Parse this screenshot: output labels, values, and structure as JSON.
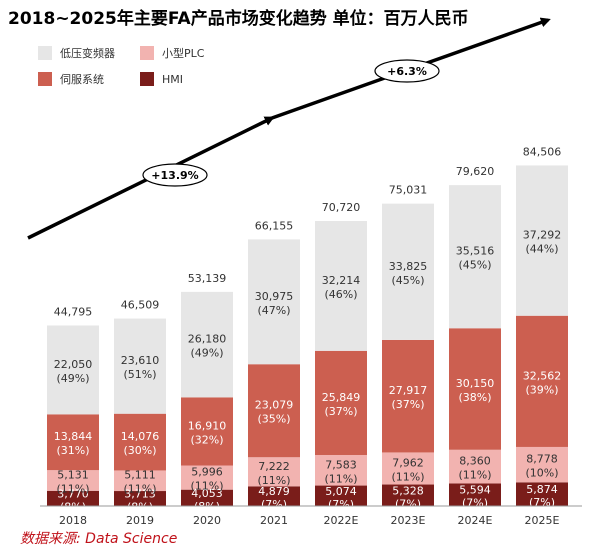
{
  "title": "2018~2025年主要FA产品市场变化趋势 单位：百万人民币",
  "source": "数据来源: Data Science",
  "colors": {
    "低压变频器": "#e6e6e6",
    "伺服系统": "#cc5f50",
    "小型PLC": "#f2b3b0",
    "HMI": "#7a1d1a"
  },
  "chart_data": {
    "type": "bar",
    "stacked": true,
    "categories": [
      "2018",
      "2019",
      "2020",
      "2021",
      "2022E",
      "2023E",
      "2024E",
      "2025E"
    ],
    "series": [
      {
        "name": "HMI",
        "values": [
          3770,
          3713,
          4053,
          4879,
          5074,
          5328,
          5594,
          5874
        ],
        "labels": [
          "3,770",
          "3,713",
          "4,053",
          "4,879",
          "5,074",
          "5,328",
          "5,594",
          "5,874"
        ],
        "pct": [
          "(8%)",
          "(8%)",
          "(8%)",
          "(7%)",
          "(7%)",
          "(7%)",
          "(7%)",
          "(7%)"
        ]
      },
      {
        "name": "小型PLC",
        "values": [
          5131,
          5111,
          5996,
          7222,
          7583,
          7962,
          8360,
          8778
        ],
        "labels": [
          "5,131",
          "5,111",
          "5,996",
          "7,222",
          "7,583",
          "7,962",
          "8,360",
          "8,778"
        ],
        "pct": [
          "(11%)",
          "(11%)",
          "(11%)",
          "(11%)",
          "(11%)",
          "(11%)",
          "(11%)",
          "(10%)"
        ]
      },
      {
        "name": "伺服系统",
        "values": [
          13844,
          14076,
          16910,
          23079,
          25849,
          27917,
          30150,
          32562
        ],
        "labels": [
          "13,844",
          "14,076",
          "16,910",
          "23,079",
          "25,849",
          "27,917",
          "30,150",
          "32,562"
        ],
        "pct": [
          "(31%)",
          "(30%)",
          "(32%)",
          "(35%)",
          "(37%)",
          "(37%)",
          "(38%)",
          "(39%)"
        ]
      },
      {
        "name": "低压变频器",
        "values": [
          22050,
          23610,
          26180,
          30975,
          32214,
          33825,
          35516,
          37292
        ],
        "labels": [
          "22,050",
          "23,610",
          "26,180",
          "30,975",
          "32,214",
          "33,825",
          "35,516",
          "37,292"
        ],
        "pct": [
          "(49%)",
          "(51%)",
          "(49%)",
          "(47%)",
          "(46%)",
          "(45%)",
          "(45%)",
          "(44%)"
        ]
      }
    ],
    "totals": [
      44795,
      46509,
      53139,
      66155,
      70720,
      75031,
      79620,
      84506
    ],
    "total_labels": [
      "44,795",
      "46,509",
      "53,139",
      "66,155",
      "70,720",
      "75,031",
      "79,620",
      "84,506"
    ],
    "legend": [
      "低压变频器",
      "小型PLC",
      "伺服系统",
      "HMI"
    ],
    "legend_position": "top-left",
    "annotations": [
      "+13.9%",
      "+6.3%"
    ],
    "grid": false,
    "ylim": [
      0,
      90000
    ]
  }
}
